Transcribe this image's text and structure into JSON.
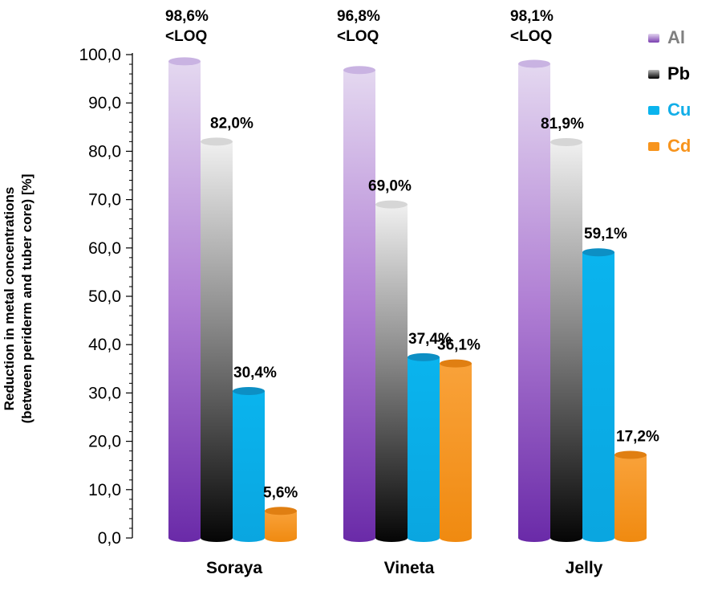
{
  "chart_data": {
    "type": "bar",
    "categories": [
      "Soraya",
      "Vineta",
      "Jelly"
    ],
    "series": [
      {
        "name": "Al",
        "color": "#7a3fb0",
        "text_color": "#7f7f7f",
        "values": [
          98.6,
          96.8,
          98.1
        ],
        "labels": [
          "98,6%\n<LOQ",
          "96,8%\n<LOQ",
          "98,1%\n<LOQ"
        ]
      },
      {
        "name": "Pb",
        "color": "#111111",
        "text_color": "#000000",
        "values": [
          82.0,
          69.0,
          81.9
        ],
        "labels": [
          "82,0%",
          "69,0%",
          "81,9%"
        ]
      },
      {
        "name": "Cu",
        "color": "#0ab4ee",
        "text_color": "#12aee8",
        "values": [
          30.4,
          37.4,
          59.1
        ],
        "labels": [
          "30,4%",
          "37,4%",
          "59,1%"
        ]
      },
      {
        "name": "Cd",
        "color": "#f7941d",
        "text_color": "#f7941d",
        "values": [
          5.6,
          36.1,
          17.2
        ],
        "labels": [
          "5,6%",
          "36,1%",
          "17,2%"
        ]
      }
    ],
    "ylabel_lines": [
      "Reduction in metal concentrations",
      "(between periderm and tuber core) [%]"
    ],
    "xlabel": "",
    "ylim": [
      0,
      100
    ],
    "yticks": [
      "0,0",
      "10,0",
      "20,0",
      "30,0",
      "40,0",
      "50,0",
      "60,0",
      "70,0",
      "80,0",
      "90,0",
      "100,0"
    ],
    "grid": false,
    "legend_position": "top-right",
    "style": "3d-cylinder"
  }
}
